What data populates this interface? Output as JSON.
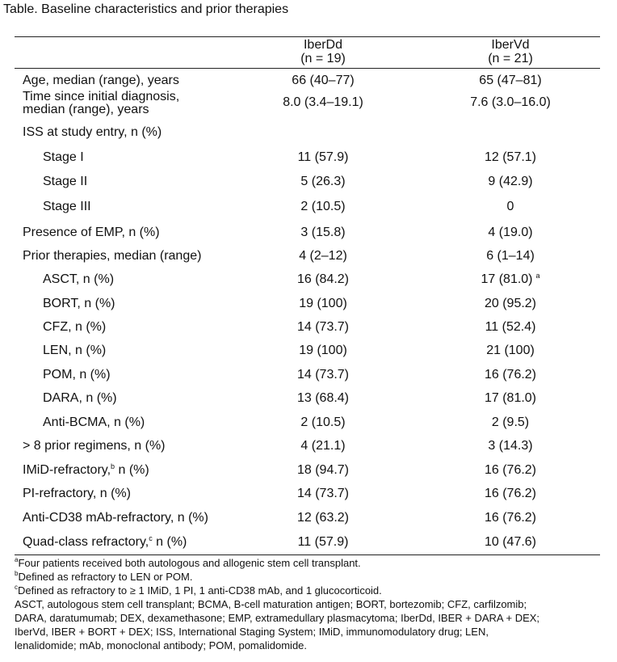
{
  "title": "Table. Baseline characteristics and prior therapies",
  "columns": [
    {
      "name": "IberDd",
      "n": "(n = 19)"
    },
    {
      "name": "IberVd",
      "n": "(n = 21)"
    }
  ],
  "rows": [
    {
      "label": "Age, median (range), years",
      "v1": "66 (40–77)",
      "v2": "65 (47–81)"
    },
    {
      "label": "Time since initial diagnosis,\nmedian (range), years",
      "v1": "8.0 (3.4–19.1)",
      "v2": "7.6 (3.0–16.0)"
    },
    {
      "label": "ISS at study entry, n (%)",
      "v1": "",
      "v2": ""
    },
    {
      "label": "Stage I",
      "indent": true,
      "v1": "11 (57.9)",
      "v2": "12 (57.1)"
    },
    {
      "label": "Stage II",
      "indent": true,
      "v1": "5 (26.3)",
      "v2": "9 (42.9)"
    },
    {
      "label": "Stage III",
      "indent": true,
      "v1": "2 (10.5)",
      "v2": "0"
    },
    {
      "label": "Presence of EMP, n (%)",
      "v1": "3 (15.8)",
      "v2": "4 (19.0)"
    },
    {
      "label": "Prior therapies, median (range)",
      "v1": "4 (2–12)",
      "v2": "6 (1–14)"
    },
    {
      "label": "ASCT, n (%)",
      "indent": true,
      "v1": "16 (84.2)",
      "v2": "17 (81.0)",
      "v2_sup": "a"
    },
    {
      "label": "BORT, n (%)",
      "indent": true,
      "v1": "19 (100)",
      "v2": "20 (95.2)"
    },
    {
      "label": "CFZ, n (%)",
      "indent": true,
      "v1": "14 (73.7)",
      "v2": "11 (52.4)"
    },
    {
      "label": "LEN, n (%)",
      "indent": true,
      "v1": "19 (100)",
      "v2": "21 (100)"
    },
    {
      "label": "POM, n (%)",
      "indent": true,
      "v1": "14 (73.7)",
      "v2": "16 (76.2)"
    },
    {
      "label": "DARA, n (%)",
      "indent": true,
      "v1": "13 (68.4)",
      "v2": "17 (81.0)"
    },
    {
      "label": "Anti-BCMA, n (%)",
      "indent": true,
      "v1": "2 (10.5)",
      "v2": "2 (9.5)"
    },
    {
      "label": "> 8 prior regimens, n (%)",
      "v1": "4 (21.1)",
      "v2": "3 (14.3)"
    },
    {
      "label": "IMiD-refractory,",
      "label_sup": "b",
      "label_after": " n (%)",
      "v1": "18 (94.7)",
      "v2": "16 (76.2)"
    },
    {
      "label": "PI-refractory, n (%)",
      "v1": "14 (73.7)",
      "v2": "16 (76.2)"
    },
    {
      "label": "Anti-CD38 mAb-refractory, n (%)",
      "v1": "12 (63.2)",
      "v2": "16 (76.2)"
    },
    {
      "label": "Quad-class refractory,",
      "label_sup": "c",
      "label_after": " n (%)",
      "v1": "11 (57.9)",
      "v2": "10 (47.6)"
    }
  ],
  "footnotes": [
    {
      "mark": "a",
      "text": "Four patients received both autologous and allogenic stem cell transplant."
    },
    {
      "mark": "b",
      "text": "Defined as refractory to LEN or POM."
    },
    {
      "mark": "c",
      "text": "Defined as refractory to ≥ 1 IMiD, 1 PI, 1 anti-CD38 mAb, and 1 glucocorticoid."
    },
    {
      "mark": "",
      "text": "ASCT, autologous stem cell transplant; BCMA, B-cell maturation antigen; BORT, bortezomib; CFZ, carfilzomib;"
    },
    {
      "mark": "",
      "text": "DARA, daratumumab; DEX, dexamethasone; EMP, extramedullary plasmacytoma; IberDd, IBER + DARA + DEX;"
    },
    {
      "mark": "",
      "text": "IberVd, IBER + BORT + DEX; ISS, International Staging System; IMiD, immunomodulatory drug; LEN,"
    },
    {
      "mark": "",
      "text": "lenalidomide; mAb, monoclonal antibody; POM, pomalidomide."
    }
  ]
}
